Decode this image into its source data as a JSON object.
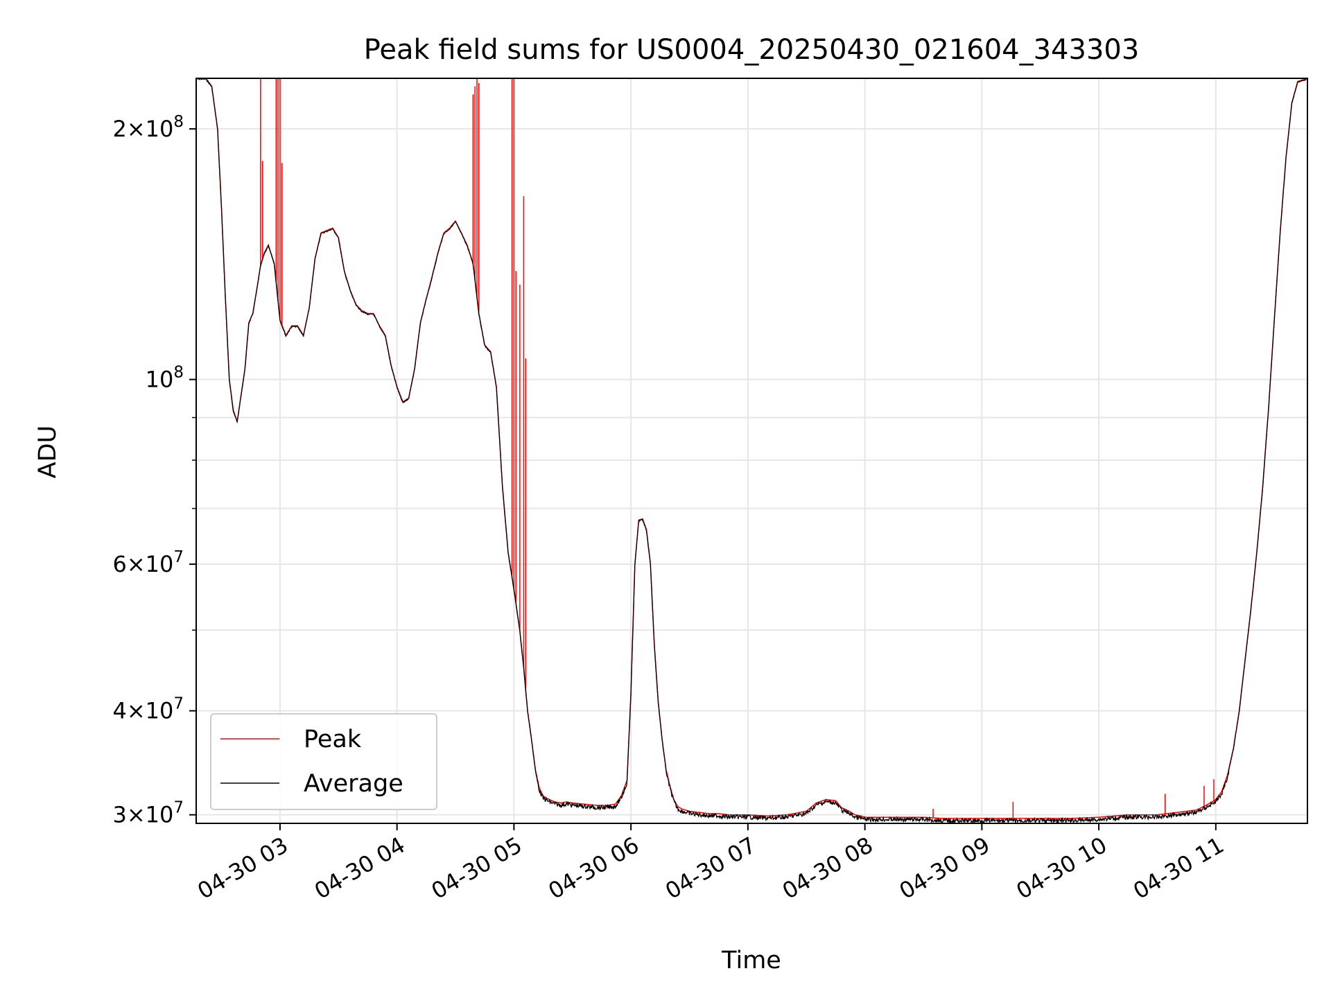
{
  "chart_data": {
    "type": "line",
    "title": "Peak field sums for US0004_20250430_021604_343303",
    "xlabel": "Time",
    "ylabel": "ADU",
    "yscale": "log",
    "ylim": [
      29300000,
      230000000
    ],
    "xlim": [
      "2025-04-30 02:17",
      "2025-04-30 11:47"
    ],
    "grid": true,
    "legend_position": "lower-left",
    "x_ticks": [
      "04-30 03",
      "04-30 04",
      "04-30 05",
      "04-30 06",
      "04-30 07",
      "04-30 08",
      "04-30 09",
      "04-30 10",
      "04-30 11"
    ],
    "y_tick_labels": [
      {
        "value": 30000000,
        "mantissa": "3",
        "exponent": "7"
      },
      {
        "value": 40000000,
        "mantissa": "4",
        "exponent": "7"
      },
      {
        "value": 60000000,
        "mantissa": "6",
        "exponent": "7"
      },
      {
        "value": 100000000,
        "mantissa": "",
        "exponent": "8"
      },
      {
        "value": 200000000,
        "mantissa": "2",
        "exponent": "8"
      }
    ],
    "y_minor_ticks": [
      50000000,
      70000000,
      80000000,
      90000000
    ],
    "times_sep": "x values are clock times on 2025-04-30 (HH:MM)",
    "series": [
      {
        "name": "Average",
        "color": "#000000",
        "x": [
          "02:17",
          "02:22",
          "02:25",
          "02:28",
          "02:30",
          "02:32",
          "02:34",
          "02:36",
          "02:38",
          "02:42",
          "02:44",
          "02:46",
          "02:48",
          "02:50",
          "02:52",
          "02:54",
          "02:57",
          "03:00",
          "03:03",
          "03:06",
          "03:09",
          "03:12",
          "03:15",
          "03:18",
          "03:21",
          "03:24",
          "03:27",
          "03:30",
          "03:33",
          "03:36",
          "03:39",
          "03:42",
          "03:45",
          "03:48",
          "03:51",
          "03:54",
          "03:57",
          "04:00",
          "04:03",
          "04:06",
          "04:09",
          "04:12",
          "04:15",
          "04:18",
          "04:21",
          "04:24",
          "04:27",
          "04:30",
          "04:33",
          "04:36",
          "04:39",
          "04:42",
          "04:45",
          "04:48",
          "04:51",
          "04:54",
          "04:57",
          "05:00",
          "05:03",
          "05:05",
          "05:07",
          "05:09",
          "05:11",
          "05:13",
          "05:15",
          "05:18",
          "05:21",
          "05:24",
          "05:27",
          "05:30",
          "05:36",
          "05:42",
          "05:48",
          "05:52",
          "05:55",
          "05:58",
          "06:00",
          "06:02",
          "06:04",
          "06:06",
          "06:08",
          "06:10",
          "06:12",
          "06:14",
          "06:16",
          "06:18",
          "06:20",
          "06:22",
          "06:24",
          "06:26",
          "06:28",
          "06:30",
          "06:35",
          "06:40",
          "06:45",
          "06:50",
          "06:55",
          "07:00",
          "07:10",
          "07:20",
          "07:30",
          "07:35",
          "07:40",
          "07:45",
          "07:48",
          "07:52",
          "07:55",
          "07:58",
          "08:00",
          "08:10",
          "08:20",
          "08:30",
          "08:40",
          "08:50",
          "09:00",
          "09:15",
          "09:30",
          "09:45",
          "10:00",
          "10:15",
          "10:30",
          "10:40",
          "10:50",
          "10:55",
          "11:00",
          "11:03",
          "11:06",
          "11:09",
          "11:12",
          "11:15",
          "11:18",
          "11:21",
          "11:24",
          "11:27",
          "11:30",
          "11:33",
          "11:36",
          "11:39",
          "11:42",
          "11:47"
        ],
        "y": [
          230000000,
          230000000,
          225000000,
          200000000,
          160000000,
          125000000,
          100000000,
          92000000,
          89000000,
          103000000,
          117000000,
          120000000,
          128000000,
          137000000,
          142000000,
          145000000,
          138000000,
          118000000,
          113000000,
          116000000,
          116000000,
          113000000,
          122000000,
          140000000,
          150000000,
          151000000,
          152000000,
          148000000,
          135000000,
          128000000,
          123000000,
          121000000,
          120000000,
          120000000,
          116000000,
          113000000,
          104000000,
          98000000,
          94000000,
          95000000,
          103000000,
          117000000,
          125000000,
          133000000,
          142000000,
          150000000,
          152000000,
          155000000,
          150000000,
          145000000,
          138000000,
          120000000,
          110000000,
          108000000,
          98000000,
          75000000,
          62000000,
          56000000,
          50000000,
          45000000,
          40000000,
          37000000,
          34000000,
          32300000,
          31600000,
          31300000,
          31100000,
          31000000,
          31100000,
          31000000,
          30900000,
          30800000,
          30800000,
          30900000,
          31600000,
          33000000,
          42000000,
          60000000,
          67800000,
          68000000,
          66000000,
          60000000,
          48000000,
          41000000,
          37000000,
          34000000,
          32500000,
          31300000,
          30700000,
          30500000,
          30400000,
          30300000,
          30200000,
          30100000,
          30100000,
          30000000,
          30000000,
          30000000,
          29900000,
          30000000,
          30300000,
          31000000,
          31300000,
          31200000,
          30600000,
          30300000,
          30000000,
          29900000,
          29800000,
          29800000,
          29800000,
          29800000,
          29700000,
          29700000,
          29700000,
          29700000,
          29700000,
          29700000,
          29800000,
          30000000,
          30000000,
          30200000,
          30400000,
          30800000,
          31300000,
          32000000,
          33500000,
          36000000,
          40000000,
          46000000,
          53000000,
          62000000,
          74000000,
          92000000,
          118000000,
          150000000,
          185000000,
          215000000,
          228000000,
          230000000
        ]
      },
      {
        "name": "Peak",
        "color": "#ff0000",
        "spikes": [
          {
            "x": "02:50",
            "y": 230000000
          },
          {
            "x": "02:51",
            "y": 183000000
          },
          {
            "x": "02:58",
            "y": 230000000
          },
          {
            "x": "02:59",
            "y": 230000000
          },
          {
            "x": "03:00",
            "y": 230000000
          },
          {
            "x": "03:01",
            "y": 182000000
          },
          {
            "x": "04:39",
            "y": 220000000
          },
          {
            "x": "04:40",
            "y": 225000000
          },
          {
            "x": "04:41",
            "y": 230000000
          },
          {
            "x": "04:42",
            "y": 227000000
          },
          {
            "x": "04:59",
            "y": 230000000
          },
          {
            "x": "05:00",
            "y": 230000000
          },
          {
            "x": "05:01",
            "y": 135000000
          },
          {
            "x": "05:03",
            "y": 130000000
          },
          {
            "x": "05:05",
            "y": 166000000
          },
          {
            "x": "05:06",
            "y": 106000000
          },
          {
            "x": "08:35",
            "y": 30500000
          },
          {
            "x": "09:16",
            "y": 31100000
          },
          {
            "x": "10:34",
            "y": 31800000
          },
          {
            "x": "10:54",
            "y": 32500000
          },
          {
            "x": "10:59",
            "y": 33100000
          }
        ]
      }
    ]
  }
}
